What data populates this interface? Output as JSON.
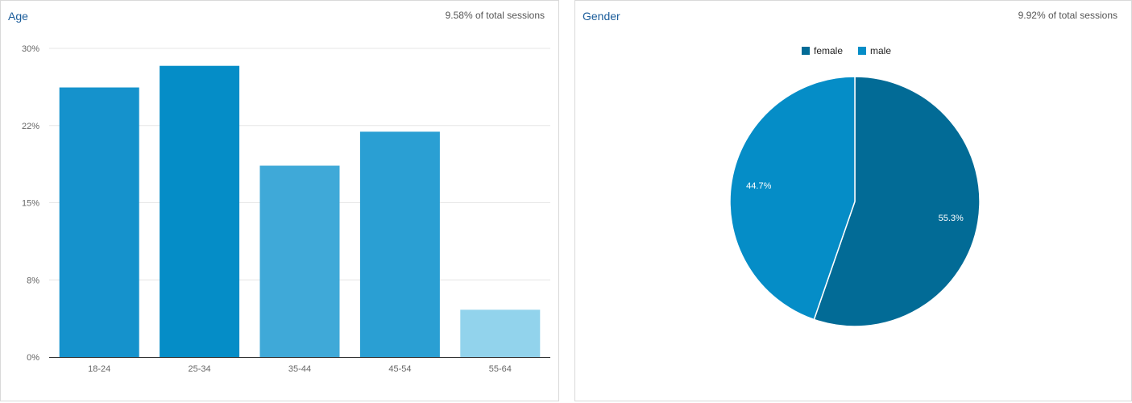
{
  "age_panel": {
    "title": "Age",
    "subtitle": "9.58% of total sessions"
  },
  "gender_panel": {
    "title": "Gender",
    "subtitle": "9.92% of total sessions"
  },
  "chart_data": [
    {
      "type": "bar",
      "title": "Age",
      "categories": [
        "18-24",
        "25-34",
        "35-44",
        "45-54",
        "55-64"
      ],
      "values": [
        26.2,
        28.3,
        18.6,
        21.9,
        4.6
      ],
      "bar_colors": [
        "#1592cc",
        "#058dc7",
        "#3fa9d8",
        "#2a9fd3",
        "#92d3ec"
      ],
      "ylim": [
        0,
        30
      ],
      "yticks": [
        0,
        7.5,
        15,
        22.5,
        30
      ],
      "ytick_labels": [
        "0%",
        "8%",
        "15%",
        "22%",
        "30%"
      ],
      "grid": true
    },
    {
      "type": "pie",
      "title": "Gender",
      "labels": [
        "female",
        "male"
      ],
      "values": [
        55.3,
        44.7
      ],
      "value_labels": [
        "55.3%",
        "44.7%"
      ],
      "colors": [
        "#026b96",
        "#058dc7"
      ],
      "legend": "top-center"
    }
  ]
}
